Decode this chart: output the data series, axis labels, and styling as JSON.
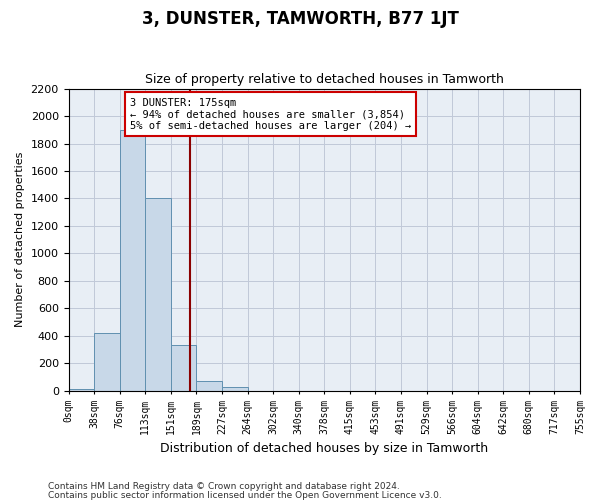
{
  "title": "3, DUNSTER, TAMWORTH, B77 1JT",
  "subtitle": "Size of property relative to detached houses in Tamworth",
  "xlabel": "Distribution of detached houses by size in Tamworth",
  "ylabel": "Number of detached properties",
  "footnote1": "Contains HM Land Registry data © Crown copyright and database right 2024.",
  "footnote2": "Contains public sector information licensed under the Open Government Licence v3.0.",
  "bin_labels": [
    "0sqm",
    "38sqm",
    "76sqm",
    "113sqm",
    "151sqm",
    "189sqm",
    "227sqm",
    "264sqm",
    "302sqm",
    "340sqm",
    "378sqm",
    "415sqm",
    "453sqm",
    "491sqm",
    "529sqm",
    "566sqm",
    "604sqm",
    "642sqm",
    "680sqm",
    "717sqm",
    "755sqm"
  ],
  "bar_values": [
    10,
    420,
    1900,
    1400,
    330,
    70,
    25,
    0,
    0,
    0,
    0,
    0,
    0,
    0,
    0,
    0,
    0,
    0,
    0,
    0
  ],
  "bar_color": "#c8d8e8",
  "bar_edge_color": "#6090b0",
  "grid_color": "#c0c8d8",
  "bg_color": "#e8eef5",
  "vline_x": 4.74,
  "vline_color": "#8b0000",
  "annotation_text": "3 DUNSTER: 175sqm\n← 94% of detached houses are smaller (3,854)\n5% of semi-detached houses are larger (204) →",
  "annotation_box_color": "#ffffff",
  "annotation_box_edge": "#cc0000",
  "ylim": [
    0,
    2200
  ],
  "yticks": [
    0,
    200,
    400,
    600,
    800,
    1000,
    1200,
    1400,
    1600,
    1800,
    2000,
    2200
  ]
}
